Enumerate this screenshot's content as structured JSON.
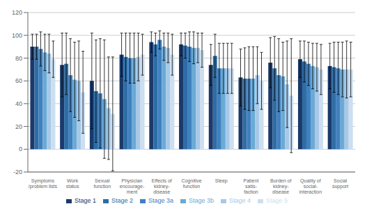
{
  "chart_data": {
    "type": "bar",
    "categories": [
      "Symptoms\n/problem lists",
      "Work\nstatus",
      "Sexual\nfunction",
      "Physician\nencourage-\nment",
      "Effects of\nkidney-\ndisease",
      "Cognitive\nfunction",
      "Sleep",
      "Patient\nsatis-\nfaction",
      "Burden of\nkidney-\ndisease",
      "Quality of\nsocial-\ninteraction",
      "Social\nsupport"
    ],
    "series": [
      {
        "name": "Stage 1",
        "color": "#1B3A6B",
        "values": [
          90,
          74,
          60,
          83,
          94,
          92,
          74,
          63,
          76,
          79,
          73
        ],
        "errors": [
          11,
          28,
          42,
          19,
          9,
          10,
          18,
          25,
          22,
          16,
          20
        ]
      },
      {
        "name": "Stage 2",
        "color": "#2E6DA4",
        "values": [
          90,
          75,
          51,
          81,
          92,
          91,
          82,
          62,
          71,
          77,
          72
        ],
        "errors": [
          11,
          27,
          45,
          21,
          10,
          11,
          19,
          27,
          28,
          18,
          22
        ]
      },
      {
        "name": "Stage 3a",
        "color": "#4080C0",
        "values": [
          88,
          65,
          49,
          80,
          96,
          90,
          71,
          62,
          65,
          75,
          71
        ],
        "errors": [
          15,
          32,
          48,
          22,
          8,
          13,
          22,
          28,
          32,
          19,
          23
        ]
      },
      {
        "name": "Stage 3b",
        "color": "#6AAAD4",
        "values": [
          85,
          61,
          44,
          80,
          90,
          89,
          71,
          62,
          64,
          73,
          70
        ],
        "errors": [
          16,
          33,
          52,
          22,
          12,
          14,
          22,
          28,
          30,
          20,
          24
        ]
      },
      {
        "name": "Stage 4",
        "color": "#A8C8E8",
        "values": [
          84,
          60,
          36,
          81,
          89,
          89,
          71,
          65,
          57,
          72,
          70
        ],
        "errors": [
          17,
          35,
          45,
          21,
          13,
          13,
          22,
          25,
          38,
          21,
          25
        ]
      },
      {
        "name": "Stage 5",
        "color": "#CCDFF0",
        "values": [
          79,
          50,
          31,
          83,
          83,
          87,
          71,
          60,
          47,
          70,
          70
        ],
        "errors": [
          16,
          36,
          50,
          18,
          18,
          15,
          22,
          25,
          50,
          22,
          24
        ]
      }
    ],
    "ylim": [
      -20,
      120
    ],
    "yticks": [
      -20,
      0,
      20,
      40,
      60,
      80,
      100,
      120
    ],
    "grid": true,
    "legend": "bottom"
  }
}
